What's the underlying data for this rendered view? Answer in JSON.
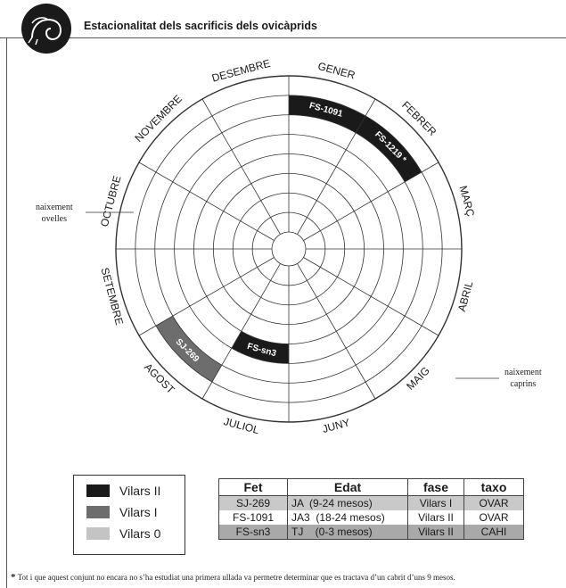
{
  "header": {
    "title": "Estacionalitat dels sacrificis dels ovicàprids"
  },
  "wheel": {
    "months": [
      "GENER",
      "FEBRER",
      "MARÇ",
      "ABRIL",
      "MAIG",
      "JUNY",
      "JULIOL",
      "AGOST",
      "SETEMBRE",
      "OCTUBRE",
      "NOVEMBRE",
      "DESEMBRE"
    ],
    "rings": 8,
    "segments": [
      {
        "label": "FS-1091",
        "month": "GENER",
        "ring": 1,
        "group": "Vilars II"
      },
      {
        "label": "FS-1219 *",
        "month": "FEBRER",
        "ring": 1,
        "group": "Vilars II"
      },
      {
        "label": "SJ-269",
        "month": "AGOST",
        "ring": 1,
        "group": "Vilars I"
      },
      {
        "label": "FS-sn3",
        "month": "JULIOL",
        "ring": 3,
        "group": "Vilars II"
      }
    ]
  },
  "notes": {
    "ovelles": [
      "naixement",
      "ovelles"
    ],
    "caprins": [
      "naixement",
      "caprins"
    ]
  },
  "legend": [
    {
      "label": "Vilars II",
      "color": "#1a1a1a"
    },
    {
      "label": "Vilars I",
      "color": "#6d6d6d"
    },
    {
      "label": "Vilars 0",
      "color": "#c4c4c4"
    }
  ],
  "table": {
    "headers": [
      "Fet",
      "Edat",
      "fase",
      "taxo"
    ],
    "rows": [
      [
        "SJ-269",
        "JA  (9-24 mesos)",
        "Vilars I",
        "OVAR"
      ],
      [
        "FS-1091",
        "JA3  (18-24 mesos)",
        "Vilars II",
        "OVAR"
      ],
      [
        "FS-sn3",
        "TJ    (0-3 mesos)",
        "Vilars II",
        "CAHI"
      ]
    ]
  },
  "footnote": {
    "mark": "*",
    "text": "Tot i que aquest conjunt no encara no s’ha estudiat una primera ullada va permetre determinar que es tractava d’un cabrit d’uns 9 mesos."
  }
}
